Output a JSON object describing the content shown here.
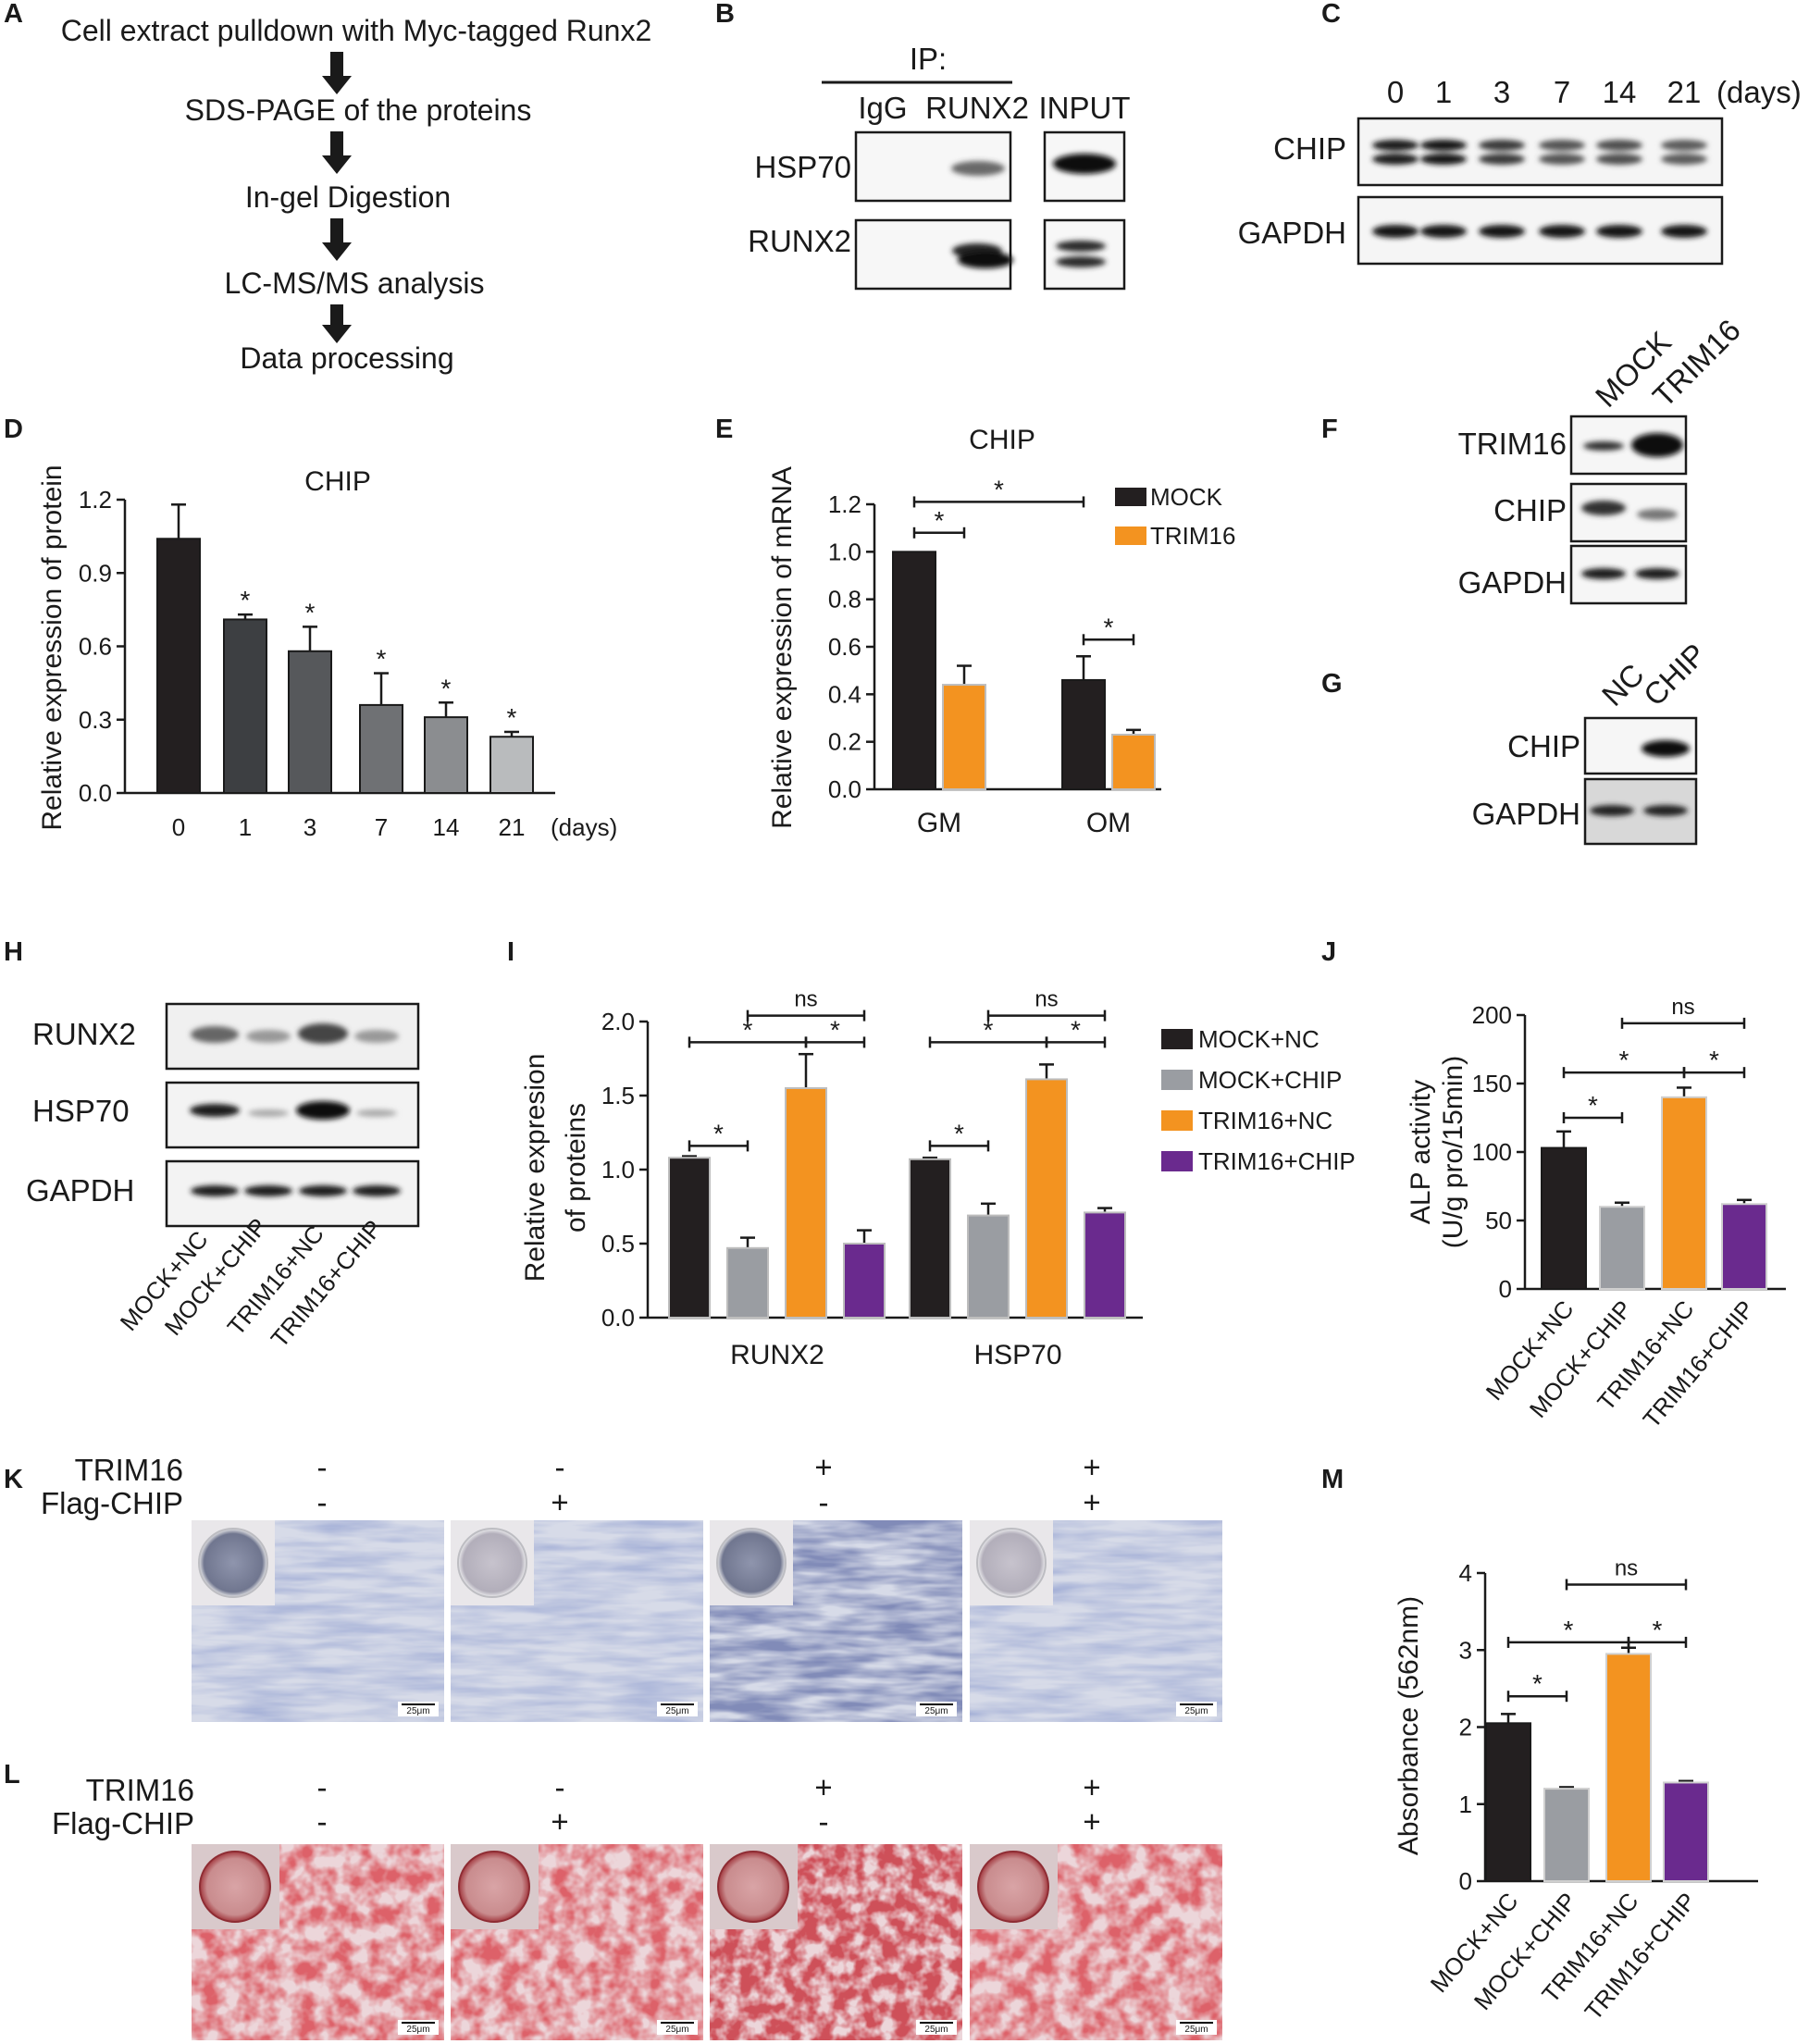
{
  "figure": {
    "panel_letters": [
      "A",
      "B",
      "C",
      "D",
      "E",
      "F",
      "G",
      "H",
      "I",
      "J",
      "K",
      "L",
      "M"
    ],
    "panelA": {
      "steps": [
        "Cell extract pulldown with Myc-tagged Runx2",
        "SDS-PAGE of the proteins",
        "In-gel Digestion",
        "LC-MS/MS analysis",
        "Data processing"
      ]
    },
    "panelB": {
      "ip_label": "IP:",
      "lanes": [
        "IgG",
        "RUNX2",
        "INPUT"
      ],
      "rows": [
        "HSP70",
        "RUNX2"
      ]
    },
    "panelC": {
      "lanes": [
        "0",
        "1",
        "3",
        "7",
        "14",
        "21"
      ],
      "unit": "(days)",
      "rows": [
        "CHIP",
        "GAPDH"
      ]
    },
    "panelF": {
      "lanes": [
        "MOCK",
        "TRIM16"
      ],
      "rows": [
        "TRIM16",
        "CHIP",
        "GAPDH"
      ]
    },
    "panelG": {
      "lanes": [
        "NC",
        "CHIP"
      ],
      "rows": [
        "CHIP",
        "GAPDH"
      ]
    },
    "panelH": {
      "rows": [
        "RUNX2",
        "HSP70",
        "GAPDH"
      ],
      "lanes": [
        "MOCK+NC",
        "MOCK+CHIP",
        "TRIM16+NC",
        "TRIM16+CHIP"
      ]
    },
    "panelK": {
      "row_labels": [
        "TRIM16",
        "Flag-CHIP"
      ],
      "signs": [
        [
          "-",
          "-"
        ],
        [
          "-",
          "+"
        ],
        [
          "+",
          "-"
        ],
        [
          "+",
          "+"
        ]
      ],
      "scalebar": "25μm"
    },
    "panelL": {
      "row_labels": [
        "TRIM16",
        "Flag-CHIP"
      ],
      "signs": [
        [
          "-",
          "-"
        ],
        [
          "-",
          "+"
        ],
        [
          "+",
          "-"
        ],
        [
          "+",
          "+"
        ]
      ],
      "scalebar": "25μm"
    },
    "colors": {
      "black": "#231f20",
      "gray": "#9a9da2",
      "orange": "#f39320",
      "purple": "#6a2a8e"
    }
  },
  "chart_data": [
    {
      "panel": "D",
      "type": "bar",
      "title": "CHIP",
      "ylabel": "Relative expression of  protein",
      "xunit": "(days)",
      "categories": [
        "0",
        "1",
        "3",
        "7",
        "14",
        "21"
      ],
      "values": [
        1.04,
        0.71,
        0.58,
        0.36,
        0.31,
        0.23
      ],
      "errors": [
        0.14,
        0.02,
        0.1,
        0.13,
        0.06,
        0.02
      ],
      "significance": [
        "",
        "*",
        "*",
        "*",
        "*",
        "*"
      ],
      "ylim": [
        0,
        1.2
      ],
      "yticks": [
        "0.0",
        "0.3",
        "0.6",
        "0.9",
        "1.2"
      ],
      "bar_colors": [
        "#231f20",
        "#3d3f42",
        "#56585b",
        "#6f7174",
        "#8b8d90",
        "#b9bbbd"
      ]
    },
    {
      "panel": "E",
      "type": "bar",
      "title": "CHIP",
      "ylabel": "Relative expression of mRNA",
      "categories": [
        "GM",
        "OM"
      ],
      "series": [
        {
          "name": "MOCK",
          "values": [
            1.0,
            0.46
          ],
          "errors": [
            0.0,
            0.1
          ]
        },
        {
          "name": "TRIM16",
          "values": [
            0.44,
            0.23
          ],
          "errors": [
            0.08,
            0.02
          ]
        }
      ],
      "ylim": [
        0,
        1.2
      ],
      "yticks": [
        "0.0",
        "0.2",
        "0.4",
        "0.6",
        "0.8",
        "1.0",
        "1.2"
      ],
      "brackets": [
        {
          "label": "*",
          "from": [
            0,
            0
          ],
          "to": [
            0,
            1
          ],
          "y": 1.08
        },
        {
          "label": "*",
          "from": [
            0,
            0
          ],
          "to": [
            1,
            0
          ],
          "y": 1.21
        },
        {
          "label": "*",
          "from": [
            1,
            0
          ],
          "to": [
            1,
            1
          ],
          "y": 0.63
        }
      ]
    },
    {
      "panel": "I",
      "type": "bar",
      "ylabel": "Relative expresion of proteins",
      "categories": [
        "RUNX2",
        "HSP70"
      ],
      "series": [
        {
          "name": "MOCK+NC",
          "values": [
            1.08,
            1.07
          ],
          "errors": [
            0.01,
            0.01
          ]
        },
        {
          "name": "MOCK+CHIP",
          "values": [
            0.47,
            0.69
          ],
          "errors": [
            0.07,
            0.08
          ]
        },
        {
          "name": "TRIM16+NC",
          "values": [
            1.55,
            1.61
          ],
          "errors": [
            0.23,
            0.1
          ]
        },
        {
          "name": "TRIM16+CHIP",
          "values": [
            0.5,
            0.71
          ],
          "errors": [
            0.09,
            0.03
          ]
        }
      ],
      "ylim": [
        0,
        2.0
      ],
      "yticks": [
        "0.0",
        "0.5",
        "1.0",
        "1.5",
        "2.0"
      ],
      "brackets": [
        {
          "label": "*",
          "from": [
            0,
            0
          ],
          "to": [
            0,
            1
          ],
          "y": 1.16
        },
        {
          "label": "*",
          "from": [
            0,
            0
          ],
          "to": [
            0,
            2
          ],
          "y": 1.86
        },
        {
          "label": "ns",
          "from": [
            0,
            1
          ],
          "to": [
            0,
            3
          ],
          "y": 2.04
        },
        {
          "label": "*",
          "from": [
            0,
            2
          ],
          "to": [
            0,
            3
          ],
          "y": 1.86
        },
        {
          "label": "*",
          "from": [
            1,
            0
          ],
          "to": [
            1,
            1
          ],
          "y": 1.16
        },
        {
          "label": "*",
          "from": [
            1,
            0
          ],
          "to": [
            1,
            2
          ],
          "y": 1.86
        },
        {
          "label": "ns",
          "from": [
            1,
            1
          ],
          "to": [
            1,
            3
          ],
          "y": 2.04
        },
        {
          "label": "*",
          "from": [
            1,
            2
          ],
          "to": [
            1,
            3
          ],
          "y": 1.86
        }
      ]
    },
    {
      "panel": "J",
      "type": "bar",
      "ylabel": "ALP activity",
      "ylabel2": "(U/g pro/15min)",
      "categories": [
        "MOCK+NC",
        "MOCK+CHIP",
        "TRIM16+NC",
        "TRIM16+CHIP"
      ],
      "values": [
        103,
        60,
        140,
        62
      ],
      "errors": [
        12,
        3,
        7,
        3
      ],
      "ylim": [
        0,
        200
      ],
      "yticks": [
        "0",
        "50",
        "100",
        "150",
        "200"
      ],
      "brackets": [
        {
          "label": "*",
          "from": 0,
          "to": 1,
          "y": 125
        },
        {
          "label": "*",
          "from": 0,
          "to": 2,
          "y": 158
        },
        {
          "label": "ns",
          "from": 1,
          "to": 3,
          "y": 194
        },
        {
          "label": "*",
          "from": 2,
          "to": 3,
          "y": 158
        }
      ]
    },
    {
      "panel": "M",
      "type": "bar",
      "ylabel": "Absorbance (562nm)",
      "categories": [
        "MOCK+NC",
        "MOCK+CHIP",
        "TRIM16+NC",
        "TRIM16+CHIP"
      ],
      "values": [
        2.05,
        1.2,
        2.95,
        1.28
      ],
      "errors": [
        0.12,
        0.02,
        0.08,
        0.02
      ],
      "ylim": [
        0,
        4
      ],
      "yticks": [
        "0",
        "1",
        "2",
        "3",
        "4"
      ],
      "brackets": [
        {
          "label": "*",
          "from": 0,
          "to": 1,
          "y": 2.4
        },
        {
          "label": "*",
          "from": 0,
          "to": 2,
          "y": 3.1
        },
        {
          "label": "ns",
          "from": 1,
          "to": 3,
          "y": 3.85
        },
        {
          "label": "*",
          "from": 2,
          "to": 3,
          "y": 3.1
        }
      ]
    }
  ]
}
